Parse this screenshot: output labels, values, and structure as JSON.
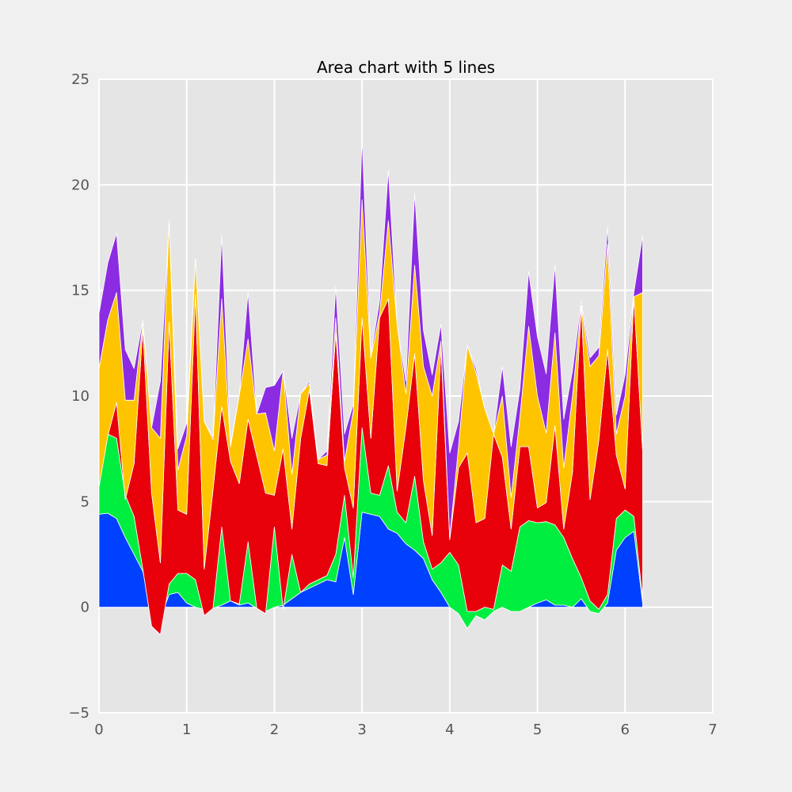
{
  "chart_data": {
    "type": "area",
    "stacked": true,
    "title": "Area chart with 5 lines",
    "xlabel": "",
    "ylabel": "",
    "xlim": [
      0,
      7
    ],
    "ylim": [
      -5,
      25
    ],
    "xticks": [
      0,
      1,
      2,
      3,
      4,
      5,
      6,
      7
    ],
    "yticks": [
      -5,
      0,
      5,
      10,
      15,
      20,
      25
    ],
    "grid": true,
    "legend": "none",
    "colors": {
      "background": "#f0f0f0",
      "plot_background": "#e5e5e5",
      "grid": "#ffffff",
      "edge": "#ffffff"
    },
    "x": [
      0.0,
      0.1,
      0.2,
      0.3,
      0.4,
      0.5,
      0.6,
      0.7,
      0.8,
      0.9,
      1.0,
      1.1,
      1.2,
      1.3,
      1.4,
      1.5,
      1.6,
      1.7,
      1.8,
      1.9,
      2.0,
      2.1,
      2.2,
      2.3,
      2.4,
      2.5,
      2.6,
      2.7,
      2.8,
      2.9,
      3.0,
      3.1,
      3.2,
      3.3,
      3.4,
      3.5,
      3.6,
      3.7,
      3.8,
      3.9,
      4.0,
      4.1,
      4.2,
      4.3,
      4.4,
      4.5,
      4.6,
      4.7,
      4.8,
      4.9,
      5.0,
      5.1,
      5.2,
      5.3,
      5.4,
      5.5,
      5.6,
      5.7,
      5.8,
      5.9,
      6.0,
      6.1,
      6.2
    ],
    "series": [
      {
        "color": "#0040ff",
        "values": [
          4.4,
          4.45,
          4.2,
          3.3,
          2.5,
          1.7,
          -0.1,
          -0.5,
          0.6,
          0.7,
          0.2,
          0.0,
          -0.1,
          -0.05,
          0.1,
          0.3,
          0.1,
          0.2,
          -0.05,
          -0.2,
          0.0,
          0.1,
          0.4,
          0.7,
          0.9,
          1.1,
          1.3,
          1.2,
          3.3,
          0.6,
          4.5,
          4.4,
          4.3,
          3.7,
          3.5,
          3.0,
          2.7,
          2.3,
          1.3,
          0.7,
          0.0,
          -0.3,
          -1.0,
          -0.4,
          -0.6,
          -0.2,
          0.0,
          -0.2,
          -0.2,
          0.0,
          0.2,
          0.35,
          0.1,
          0.1,
          0.0,
          0.4,
          -0.2,
          -0.3,
          0.2,
          2.7,
          3.3,
          3.6,
          0.2
        ]
      },
      {
        "color": "#00ee40",
        "values": [
          1.4,
          3.75,
          3.8,
          2.0,
          1.8,
          0.1,
          -0.8,
          -0.8,
          0.5,
          0.9,
          1.4,
          1.3,
          -0.3,
          0.0,
          3.7,
          0.0,
          0.05,
          2.9,
          0.0,
          -0.1,
          3.8,
          -0.2,
          2.1,
          0.0,
          0.2,
          0.2,
          0.2,
          1.3,
          2.0,
          0.8,
          4.0,
          1.0,
          1.0,
          3.0,
          1.0,
          1.0,
          3.5,
          0.8,
          0.5,
          1.4,
          2.6,
          2.3,
          0.8,
          0.2,
          0.6,
          0.1,
          2.0,
          1.9,
          4.0,
          4.1,
          3.8,
          3.7,
          3.8,
          3.2,
          2.3,
          1.0,
          0.5,
          0.2,
          0.4,
          1.5,
          1.3,
          0.7,
          0.2
        ]
      },
      {
        "color": "#e8000b",
        "values": [
          -0.1,
          -0.1,
          1.7,
          -0.2,
          2.5,
          11.4,
          6.3,
          3.4,
          12.4,
          3.0,
          2.8,
          13.5,
          2.2,
          5.6,
          5.7,
          6.6,
          5.7,
          5.8,
          7.2,
          5.7,
          1.5,
          7.6,
          1.2,
          7.3,
          9.2,
          5.5,
          5.2,
          10.5,
          1.3,
          3.3,
          5.2,
          2.6,
          8.4,
          7.9,
          1.0,
          4.5,
          5.8,
          2.9,
          1.6,
          10.2,
          0.6,
          4.6,
          7.5,
          4.2,
          4.2,
          8.3,
          5.1,
          2.0,
          3.8,
          3.5,
          0.7,
          0.9,
          4.7,
          0.4,
          4.1,
          12.9,
          4.8,
          8.0,
          11.6,
          3.0,
          1.0,
          10.4,
          7.0
        ]
      },
      {
        "color": "#ffc400",
        "values": [
          5.6,
          5.5,
          5.2,
          4.7,
          3.0,
          0.3,
          3.1,
          5.9,
          4.8,
          1.9,
          3.7,
          1.7,
          7.0,
          2.4,
          5.1,
          0.7,
          4.2,
          3.8,
          2.0,
          3.8,
          2.1,
          3.7,
          2.6,
          2.1,
          0.3,
          0.2,
          0.5,
          0.7,
          0.3,
          4.6,
          5.6,
          3.8,
          0.2,
          3.7,
          7.9,
          1.6,
          4.2,
          5.4,
          6.6,
          0.3,
          0.1,
          1.0,
          5.1,
          7.1,
          5.2,
          0.0,
          2.9,
          1.5,
          1.4,
          5.7,
          5.3,
          3.3,
          4.4,
          2.9,
          3.6,
          0.0,
          6.3,
          4.0,
          5.0,
          1.0,
          4.4,
          0.0,
          7.5
        ]
      },
      {
        "color": "#8b2be2",
        "values": [
          2.6,
          2.7,
          2.8,
          2.4,
          1.5,
          0.1,
          0.0,
          2.7,
          0.0,
          1.0,
          0.6,
          0.0,
          0.0,
          0.1,
          3.0,
          0.1,
          0.0,
          2.2,
          0.0,
          1.2,
          3.1,
          0.0,
          1.7,
          0.0,
          0.1,
          0.0,
          0.2,
          1.5,
          1.3,
          0.3,
          2.9,
          0.1,
          0.6,
          2.4,
          0.0,
          0.6,
          3.4,
          1.7,
          1.0,
          0.8,
          4.0,
          1.2,
          0.0,
          0.2,
          0.0,
          0.0,
          1.4,
          2.4,
          1.3,
          2.6,
          2.8,
          2.8,
          3.2,
          2.3,
          1.2,
          0.2,
          0.4,
          0.4,
          0.8,
          0.9,
          1.0,
          0.2,
          2.7
        ]
      }
    ]
  }
}
